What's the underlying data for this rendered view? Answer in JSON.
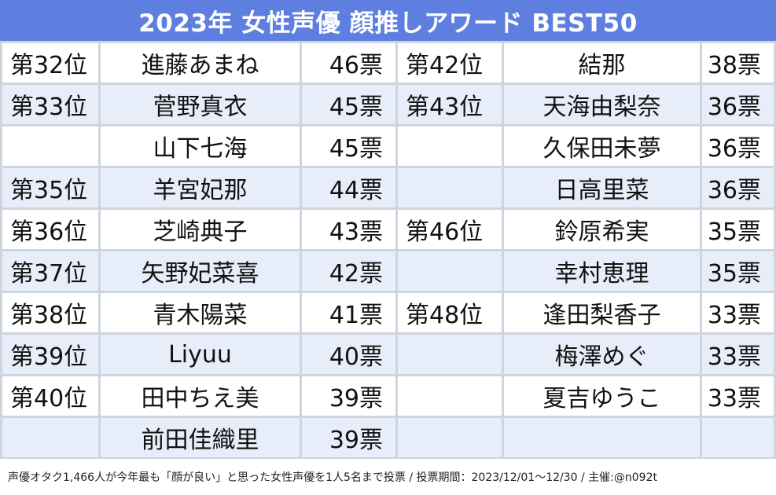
{
  "title": "2023年 女性声優 顔推しアワード BEST50",
  "colors": {
    "title_bg": "#5f7fe0",
    "row_alt_bg": "#e8eef9",
    "row_bg": "#ffffff",
    "grid": "#cfd5df"
  },
  "rows": [
    {
      "left": {
        "rank": "第32位",
        "name": "進藤あまね",
        "votes": "46票"
      },
      "right": {
        "rank": "第42位",
        "name": "結那",
        "votes": "38票"
      }
    },
    {
      "left": {
        "rank": "第33位",
        "name": "菅野真衣",
        "votes": "45票"
      },
      "right": {
        "rank": "第43位",
        "name": "天海由梨奈",
        "votes": "36票"
      }
    },
    {
      "left": {
        "rank": "",
        "name": "山下七海",
        "votes": "45票"
      },
      "right": {
        "rank": "",
        "name": "久保田未夢",
        "votes": "36票"
      }
    },
    {
      "left": {
        "rank": "第35位",
        "name": "羊宮妃那",
        "votes": "44票"
      },
      "right": {
        "rank": "",
        "name": "日高里菜",
        "votes": "36票"
      }
    },
    {
      "left": {
        "rank": "第36位",
        "name": "芝崎典子",
        "votes": "43票"
      },
      "right": {
        "rank": "第46位",
        "name": "鈴原希実",
        "votes": "35票"
      }
    },
    {
      "left": {
        "rank": "第37位",
        "name": "矢野妃菜喜",
        "votes": "42票"
      },
      "right": {
        "rank": "",
        "name": "幸村恵理",
        "votes": "35票"
      }
    },
    {
      "left": {
        "rank": "第38位",
        "name": "青木陽菜",
        "votes": "41票"
      },
      "right": {
        "rank": "第48位",
        "name": "逢田梨香子",
        "votes": "33票"
      }
    },
    {
      "left": {
        "rank": "第39位",
        "name": "Liyuu",
        "votes": "40票"
      },
      "right": {
        "rank": "",
        "name": "梅澤めぐ",
        "votes": "33票"
      }
    },
    {
      "left": {
        "rank": "第40位",
        "name": "田中ちえ美",
        "votes": "39票"
      },
      "right": {
        "rank": "",
        "name": "夏吉ゆうこ",
        "votes": "33票"
      }
    },
    {
      "left": {
        "rank": "",
        "name": "前田佳織里",
        "votes": "39票"
      },
      "right": {
        "rank": "",
        "name": "",
        "votes": ""
      }
    }
  ],
  "footer": "声優オタク1,466人が今年最も「顔が良い」と思った女性声優を1人5名まで投票 / 投票期間：2023/12/01～12/30 / 主催:@n092t"
}
